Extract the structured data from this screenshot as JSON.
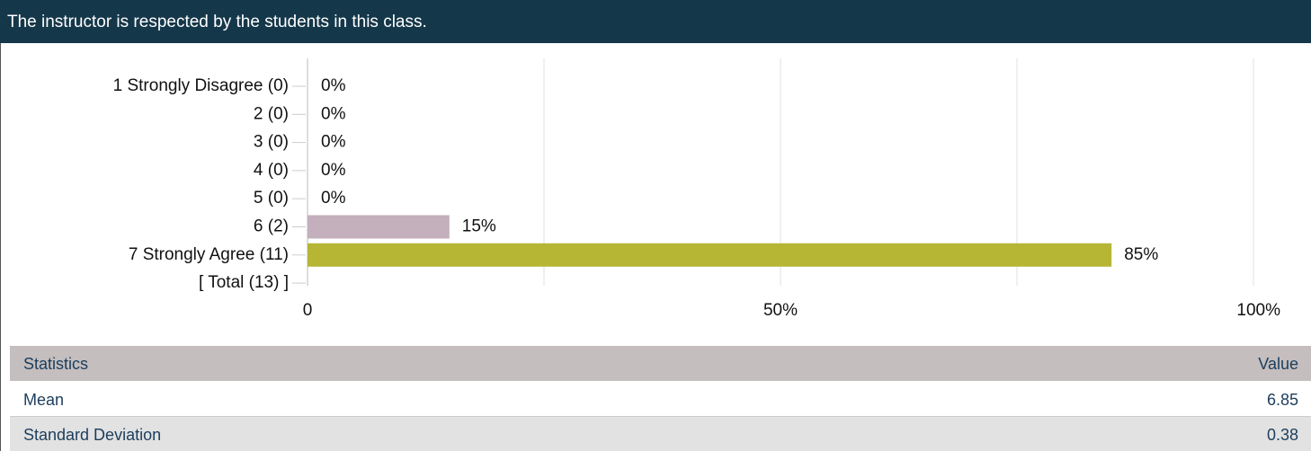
{
  "header": {
    "title": "The instructor is respected by the students in this class."
  },
  "chart_data": {
    "type": "hbar",
    "categories": [
      "1 Strongly Disagree (0)",
      "2 (0)",
      "3 (0)",
      "4 (0)",
      "5 (0)",
      "6 (2)",
      "7 Strongly Agree (11)",
      "[ Total (13) ]"
    ],
    "values": [
      0,
      0,
      0,
      0,
      0,
      15,
      85,
      null
    ],
    "value_labels": [
      "0%",
      "0%",
      "0%",
      "0%",
      "0%",
      "15%",
      "85%",
      null
    ],
    "colors": [
      null,
      null,
      null,
      null,
      null,
      "#c4afbc",
      "#b6b534",
      null
    ],
    "xlim": [
      0,
      100
    ],
    "xticks": [
      0,
      {
        "value": 50,
        "label": "50%"
      },
      {
        "value": 100,
        "label": "100%"
      }
    ],
    "xminor_ticks": [
      25,
      75
    ],
    "grid": true
  },
  "table": {
    "header": [
      "Statistics",
      "Value"
    ],
    "rows": [
      [
        "Mean",
        6.85
      ],
      [
        "Standard Deviation",
        0.38
      ]
    ]
  }
}
